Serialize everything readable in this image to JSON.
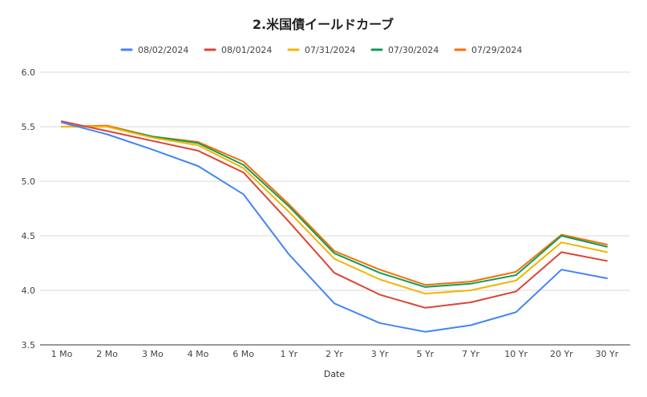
{
  "chart_data": {
    "type": "line",
    "title": "2.米国債イールドカーブ",
    "xlabel": "Date",
    "ylabel": "",
    "ylim": [
      3.5,
      6.0
    ],
    "yticks": [
      "3.5",
      "4.0",
      "4.5",
      "5.0",
      "5.5",
      "6.0"
    ],
    "grid": true,
    "legend_position": "top",
    "categories": [
      "1 Mo",
      "2 Mo",
      "3 Mo",
      "4 Mo",
      "6 Mo",
      "1 Yr",
      "2 Yr",
      "3 Yr",
      "5 Yr",
      "7 Yr",
      "10 Yr",
      "20 Yr",
      "30 Yr"
    ],
    "series": [
      {
        "name": "08/02/2024",
        "color": "#4285f4",
        "values": [
          5.54,
          5.43,
          5.29,
          5.14,
          4.88,
          4.33,
          3.88,
          3.7,
          3.62,
          3.68,
          3.8,
          4.19,
          4.11
        ]
      },
      {
        "name": "08/01/2024",
        "color": "#db4437",
        "values": [
          5.55,
          5.46,
          5.37,
          5.28,
          5.08,
          4.63,
          4.16,
          3.96,
          3.84,
          3.89,
          3.99,
          4.35,
          4.27
        ]
      },
      {
        "name": "07/31/2024",
        "color": "#f4b400",
        "values": [
          5.5,
          5.5,
          5.4,
          5.33,
          5.12,
          4.72,
          4.29,
          4.1,
          3.97,
          4.0,
          4.09,
          4.44,
          4.35
        ]
      },
      {
        "name": "07/30/2024",
        "color": "#0f9d58",
        "values": [
          5.5,
          5.5,
          5.41,
          5.35,
          5.15,
          4.77,
          4.34,
          4.16,
          4.03,
          4.06,
          4.14,
          4.5,
          4.4
        ]
      },
      {
        "name": "07/29/2024",
        "color": "#ff6d01",
        "values": [
          5.5,
          5.51,
          5.41,
          5.36,
          5.18,
          4.79,
          4.36,
          4.19,
          4.05,
          4.08,
          4.17,
          4.51,
          4.42
        ]
      }
    ]
  }
}
